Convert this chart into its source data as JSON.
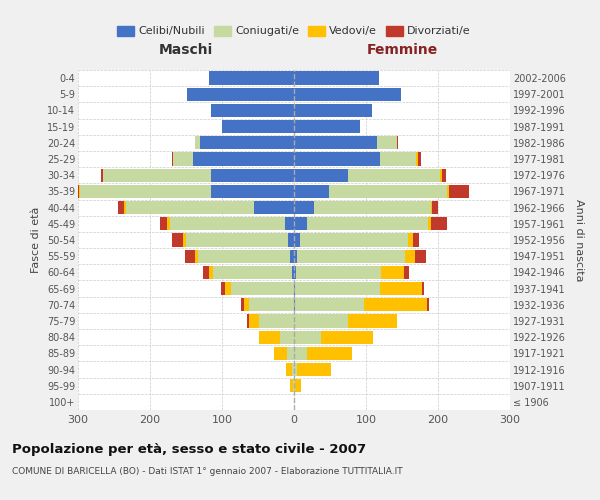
{
  "age_groups": [
    "100+",
    "95-99",
    "90-94",
    "85-89",
    "80-84",
    "75-79",
    "70-74",
    "65-69",
    "60-64",
    "55-59",
    "50-54",
    "45-49",
    "40-44",
    "35-39",
    "30-34",
    "25-29",
    "20-24",
    "15-19",
    "10-14",
    "5-9",
    "0-4"
  ],
  "birth_years": [
    "≤ 1906",
    "1907-1911",
    "1912-1916",
    "1917-1921",
    "1922-1926",
    "1927-1931",
    "1932-1936",
    "1937-1941",
    "1942-1946",
    "1947-1951",
    "1952-1956",
    "1957-1961",
    "1962-1966",
    "1967-1971",
    "1972-1976",
    "1977-1981",
    "1982-1986",
    "1987-1991",
    "1992-1996",
    "1997-2001",
    "2002-2006"
  ],
  "male_celibi": [
    0,
    0,
    0,
    0,
    0,
    0,
    0,
    0,
    3,
    5,
    8,
    12,
    55,
    115,
    115,
    140,
    130,
    100,
    115,
    148,
    118
  ],
  "male_coniugati": [
    0,
    2,
    3,
    10,
    20,
    48,
    62,
    88,
    110,
    128,
    142,
    160,
    178,
    182,
    150,
    28,
    8,
    0,
    0,
    0,
    0
  ],
  "male_vedovi": [
    0,
    4,
    8,
    18,
    28,
    14,
    8,
    8,
    5,
    4,
    4,
    4,
    3,
    2,
    0,
    0,
    0,
    0,
    0,
    0,
    0
  ],
  "male_divorziati": [
    0,
    0,
    0,
    0,
    0,
    3,
    3,
    5,
    8,
    14,
    16,
    10,
    8,
    8,
    3,
    2,
    0,
    0,
    0,
    0,
    0
  ],
  "female_nubili": [
    0,
    0,
    0,
    0,
    0,
    0,
    2,
    2,
    3,
    4,
    8,
    18,
    28,
    48,
    75,
    120,
    115,
    92,
    108,
    148,
    118
  ],
  "female_coniugate": [
    0,
    2,
    4,
    18,
    38,
    75,
    95,
    118,
    118,
    150,
    150,
    168,
    162,
    165,
    128,
    50,
    28,
    0,
    0,
    0,
    0
  ],
  "female_vedove": [
    0,
    8,
    48,
    62,
    72,
    68,
    88,
    58,
    32,
    14,
    7,
    4,
    2,
    2,
    2,
    2,
    0,
    0,
    0,
    0,
    0
  ],
  "female_divorziate": [
    0,
    0,
    0,
    0,
    0,
    0,
    3,
    3,
    7,
    16,
    8,
    22,
    8,
    28,
    6,
    4,
    2,
    0,
    0,
    0,
    0
  ],
  "color_celibi": "#4472C4",
  "color_coniugati": "#C5D9A0",
  "color_vedovi": "#FFC000",
  "color_divorziati": "#C0392B",
  "title": "Popolazione per età, sesso e stato civile - 2007",
  "subtitle": "COMUNE DI BARICELLA (BO) - Dati ISTAT 1° gennaio 2007 - Elaborazione TUTTITALIA.IT",
  "label_maschi": "Maschi",
  "label_femmine": "Femmine",
  "label_fasce": "Fasce di età",
  "label_anni": "Anni di nascita",
  "legend_celibi": "Celibi/Nubili",
  "legend_coniugati": "Coniugati/e",
  "legend_vedovi": "Vedovi/e",
  "legend_divorziati": "Divorziati/e",
  "xlim": 300,
  "bg_color": "#F0F0F0",
  "plot_bg": "#FFFFFF",
  "grid_color": "#CCCCCC"
}
